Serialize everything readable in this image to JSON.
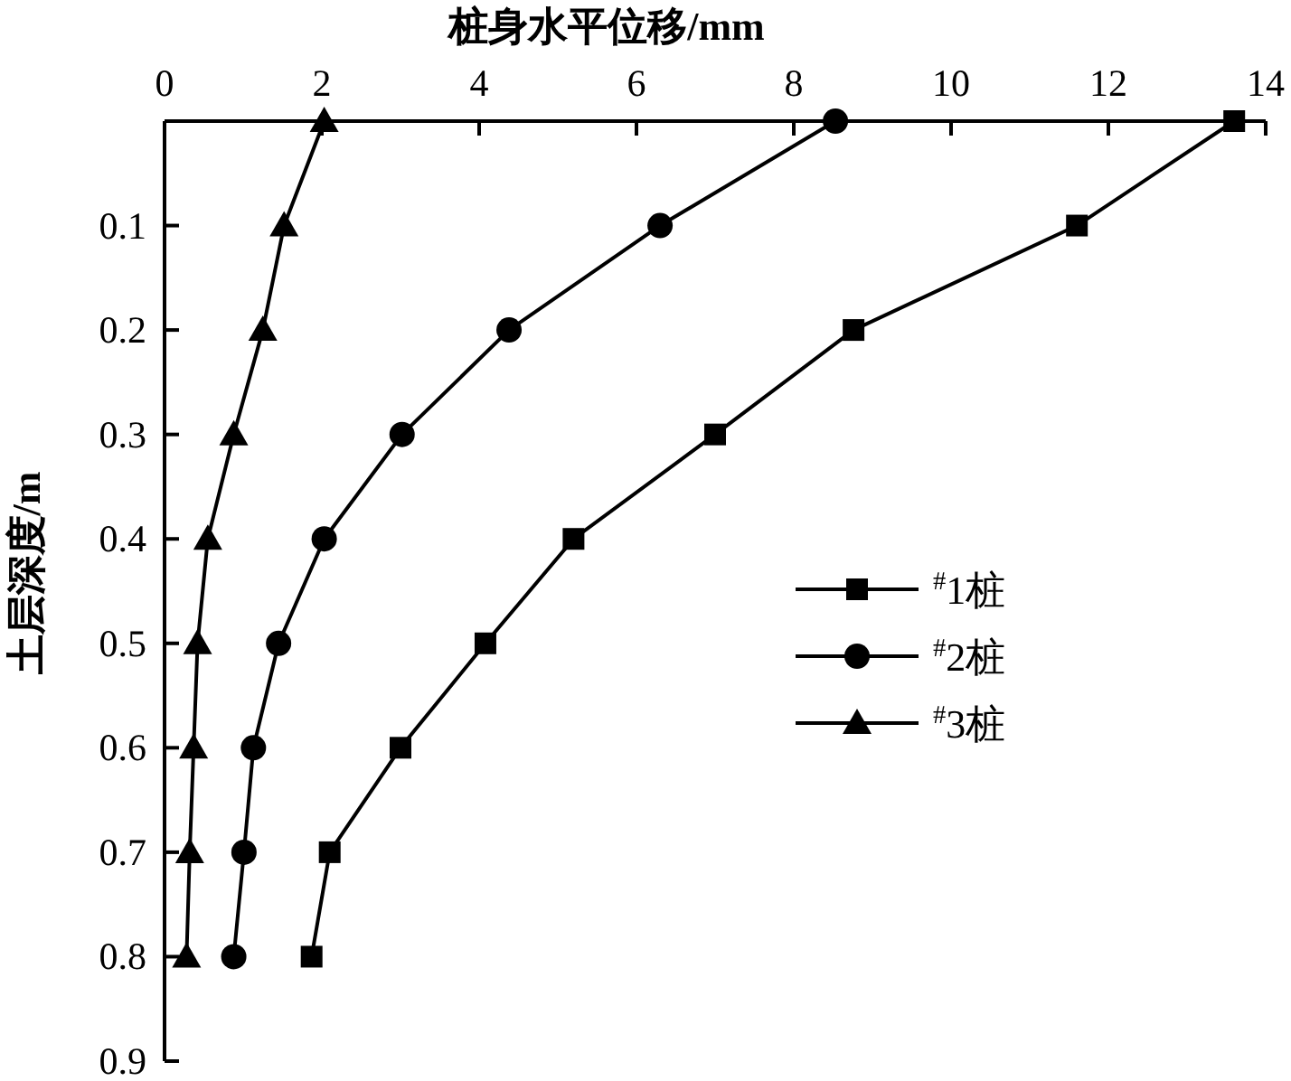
{
  "chart_data": {
    "type": "line",
    "xlabel": "桩身水平位移/mm",
    "ylabel": "土层深度/m",
    "xlim": [
      0,
      14
    ],
    "xticks": [
      0,
      2,
      4,
      6,
      8,
      10,
      12,
      14
    ],
    "ylim": [
      0.9,
      0
    ],
    "yticks": [
      0.1,
      0.2,
      0.3,
      0.4,
      0.5,
      0.6,
      0.7,
      0.8,
      0.9
    ],
    "legend": "right",
    "grid": false,
    "line_style": "solid",
    "series": [
      {
        "name": "$^{#}$1桩",
        "color": "#000000",
        "marker": "square",
        "x": [
          13.6,
          11.6,
          8.76,
          7.0,
          5.2,
          4.08,
          3.0,
          2.1,
          1.87
        ],
        "values": [
          0,
          0.1,
          0.2,
          0.3,
          0.4,
          0.5,
          0.6,
          0.7,
          0.8
        ]
      },
      {
        "name": "$^{#}$2桩",
        "color": "#000000",
        "marker": "circle",
        "x": [
          8.53,
          6.3,
          4.38,
          3.02,
          2.03,
          1.45,
          1.13,
          1.01,
          0.88
        ],
        "values": [
          0,
          0.1,
          0.2,
          0.3,
          0.4,
          0.5,
          0.6,
          0.7,
          0.8
        ]
      },
      {
        "name": "$^{#}$3桩",
        "color": "#000000",
        "marker": "triangle",
        "x": [
          2.03,
          1.52,
          1.25,
          0.88,
          0.55,
          0.42,
          0.37,
          0.32,
          0.28
        ],
        "values": [
          0,
          0.1,
          0.2,
          0.3,
          0.4,
          0.5,
          0.6,
          0.7,
          0.8
        ]
      }
    ]
  }
}
